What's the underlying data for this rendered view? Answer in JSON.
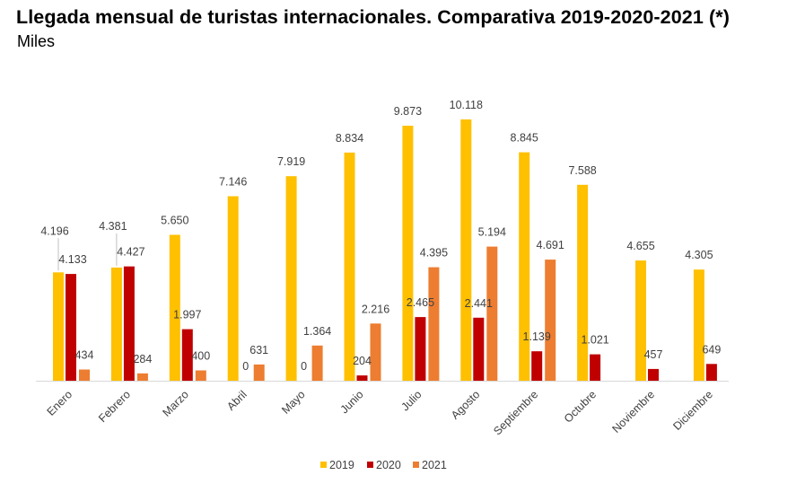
{
  "title": "Llegada mensual de turistas internacionales. Comparativa 2019-2020-2021 (*)",
  "subtitle": "Miles",
  "colors": {
    "2019": "#FFC000",
    "2020": "#C00000",
    "2021": "#ED7D31"
  },
  "chart_data": {
    "type": "bar",
    "title": "Llegada mensual de turistas internacionales. Comparativa 2019-2020-2021 (*)",
    "subtitle": "Miles",
    "categories": [
      "Enero",
      "Febrero",
      "Marzo",
      "Abril",
      "Mayo",
      "Junio",
      "Julio",
      "Agosto",
      "Septiembre",
      "Octubre",
      "Noviembre",
      "Diciembre"
    ],
    "series": [
      {
        "name": "2019",
        "values": [
          4196,
          4381,
          5650,
          7146,
          7919,
          8834,
          9873,
          10118,
          8845,
          7588,
          4655,
          4305
        ],
        "labels": [
          "4.196",
          "4.381",
          "5.650",
          "7.146",
          "7.919",
          "8.834",
          "9.873",
          "10.118",
          "8.845",
          "7.588",
          "4.655",
          "4.305"
        ]
      },
      {
        "name": "2020",
        "values": [
          4133,
          4427,
          1997,
          0,
          0,
          204,
          2465,
          2441,
          1139,
          1021,
          457,
          649
        ],
        "labels": [
          "4.133",
          "4.427",
          "1.997",
          "0",
          "0",
          "204",
          "2.465",
          "2.441",
          "1.139",
          "1.021",
          "457",
          "649"
        ]
      },
      {
        "name": "2021",
        "values": [
          434,
          284,
          400,
          631,
          1364,
          2216,
          4395,
          5194,
          4691,
          null,
          null,
          null
        ],
        "labels": [
          "434",
          "284",
          "400",
          "631",
          "1.364",
          "2.216",
          "4.395",
          "5.194",
          "4.691",
          null,
          null,
          null
        ]
      }
    ],
    "ylim": [
      0,
      10118
    ],
    "grid": false,
    "legend": "bottom"
  }
}
